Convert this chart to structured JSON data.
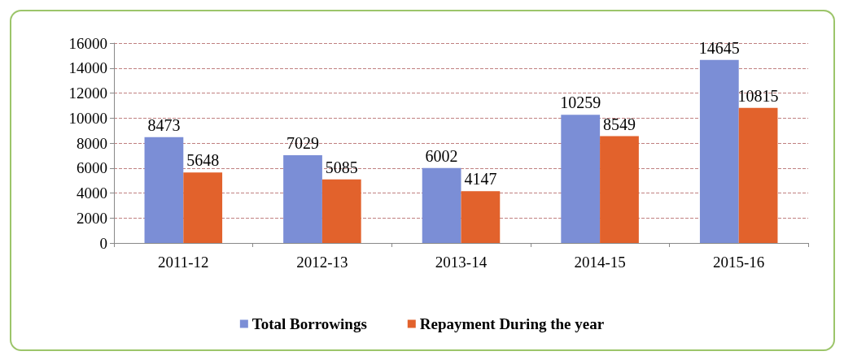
{
  "chart_data": {
    "type": "bar",
    "categories": [
      "2011-12",
      "2012-13",
      "2013-14",
      "2014-15",
      "2015-16"
    ],
    "series": [
      {
        "name": "Total Borrowings",
        "color": "#7b8ed6",
        "values": [
          8473,
          7029,
          6002,
          10259,
          14645
        ]
      },
      {
        "name": "Repayment During the year",
        "color": "#e2622c",
        "values": [
          5648,
          5085,
          4147,
          8549,
          10815
        ]
      }
    ],
    "ylim": [
      0,
      16000
    ],
    "yticks": [
      0,
      2000,
      4000,
      6000,
      8000,
      10000,
      12000,
      14000,
      16000
    ],
    "grid": "y",
    "legend": "bottom",
    "data_labels": true
  }
}
